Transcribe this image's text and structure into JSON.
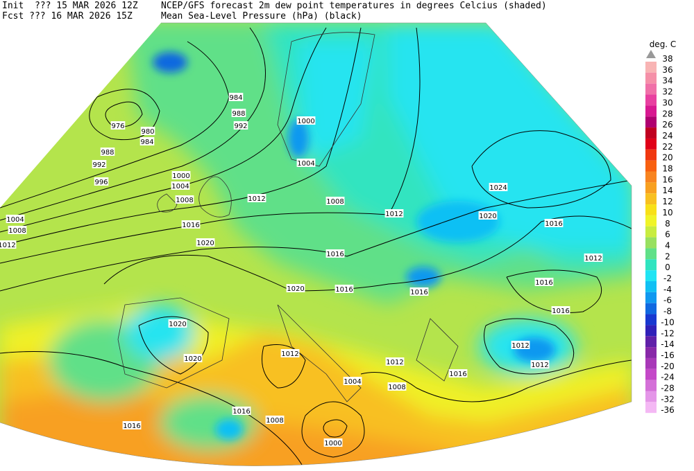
{
  "header": {
    "init": "Init  ??? 15 MAR 2026 12Z",
    "fcst": "Fcst ??? 16 MAR 2026 15Z",
    "title": "NCEP/GFS forecast 2m dew point temperatures in degrees Celcius (shaded)",
    "subtitle": "Mean Sea-Level Pressure (hPa) (black)"
  },
  "legend": {
    "unit": "deg. C",
    "levels": [
      38,
      36,
      34,
      32,
      30,
      28,
      26,
      24,
      22,
      20,
      18,
      16,
      14,
      12,
      10,
      8,
      6,
      4,
      2,
      0,
      -2,
      -4,
      -6,
      -8,
      -10,
      -12,
      -14,
      -16,
      -20,
      -24,
      -28,
      -32,
      -36
    ],
    "colors": [
      "#f8b4b4",
      "#f590a8",
      "#f070a8",
      "#e840a0",
      "#d81890",
      "#b00070",
      "#c00020",
      "#e00018",
      "#f03810",
      "#f86010",
      "#f88420",
      "#f8a020",
      "#f8c020",
      "#f8e018",
      "#f0f428",
      "#c8ec40",
      "#98e060",
      "#60e088",
      "#30e4c0",
      "#20e4f4",
      "#10c0f4",
      "#1098f0",
      "#1068e0",
      "#1838d0",
      "#3020b8",
      "#6020a8",
      "#8828a8",
      "#a838b8",
      "#c448c8",
      "#d470d8",
      "#e496e8",
      "#f4b8f4"
    ]
  },
  "isobar_labels": [
    976,
    980,
    984,
    988,
    992,
    996,
    984,
    988,
    992,
    1000,
    1004,
    1004,
    1008,
    1012,
    1008,
    1004,
    1000,
    1012,
    1008,
    1012,
    1024,
    1020,
    1016,
    1016,
    1020,
    1016,
    1012,
    1016,
    1016,
    1016,
    1020,
    1016,
    1020,
    1020,
    1012,
    1012,
    1012,
    1012,
    1016,
    1004,
    1008,
    1016,
    1008,
    1016,
    1000
  ]
}
